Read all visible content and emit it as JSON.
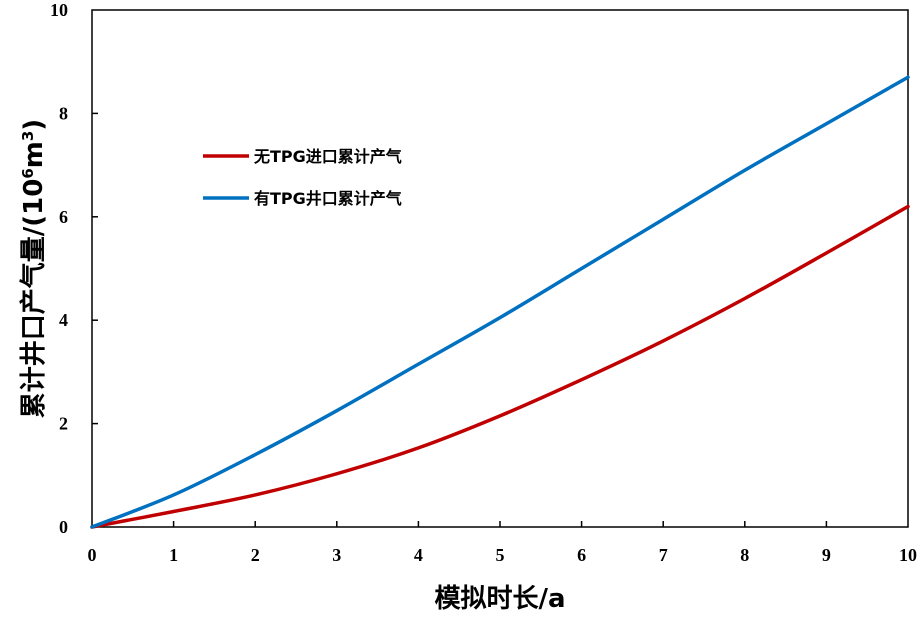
{
  "chart_data": {
    "type": "line",
    "xlabel": "模拟时长/a",
    "ylabel": "累计井口产气量/(10",
    "ylabel_exp": "6",
    "ylabel_unit": "m",
    "ylabel_unit_exp": "3",
    "ylabel_close": ")",
    "xlim": [
      0,
      10
    ],
    "ylim": [
      0,
      10
    ],
    "xticks": [
      "0",
      "1",
      "2",
      "3",
      "4",
      "5",
      "6",
      "7",
      "8",
      "9",
      "10"
    ],
    "yticks": [
      "0",
      "2",
      "4",
      "6",
      "8",
      "10"
    ],
    "grid": false,
    "legend_position": "upper-left",
    "series": [
      {
        "name": "无TPG进口累计产气",
        "color": "#c00000",
        "x": [
          0,
          1,
          2,
          3,
          4,
          5,
          6,
          7,
          8,
          9,
          10
        ],
        "y": [
          0,
          0.3,
          0.62,
          1.03,
          1.53,
          2.15,
          2.85,
          3.6,
          4.42,
          5.3,
          6.2
        ]
      },
      {
        "name": "有TPG井口累计产气",
        "color": "#0070c0",
        "x": [
          0,
          1,
          2,
          3,
          4,
          5,
          6,
          7,
          8,
          9,
          10
        ],
        "y": [
          0,
          0.62,
          1.4,
          2.25,
          3.15,
          4.05,
          5.0,
          5.95,
          6.9,
          7.8,
          8.7
        ]
      }
    ]
  }
}
